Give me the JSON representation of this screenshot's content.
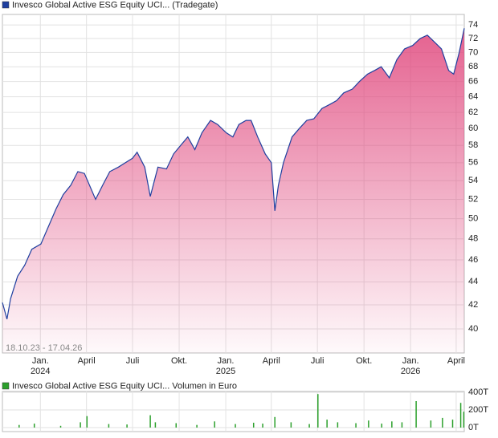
{
  "chart_data": [
    {
      "type": "line",
      "title": "Invesco Global Active ESG Equity UCI... (Tradegate)",
      "subtitle": "18.10.23 - 17.04.26",
      "log": true,
      "grid": true,
      "fill_color": "#e0467c",
      "xlim": [
        "2023-10-18",
        "2026-04-17"
      ],
      "ylim": [
        38.1,
        75.6
      ],
      "yticks": [
        40,
        42,
        44,
        46,
        48,
        50,
        52,
        54,
        56,
        58,
        60,
        62,
        64,
        66,
        68,
        70,
        72,
        74
      ],
      "xticks": [
        {
          "value": "2024-01-01",
          "label": "Jan."
        },
        {
          "value": "2024-04-01",
          "label": "April"
        },
        {
          "value": "2024-07-01",
          "label": "Juli"
        },
        {
          "value": "2024-10-01",
          "label": "Okt."
        },
        {
          "value": "2025-01-01",
          "label": "Jan."
        },
        {
          "value": "2025-04-01",
          "label": "April"
        },
        {
          "value": "2025-07-01",
          "label": "Juli"
        },
        {
          "value": "2025-10-01",
          "label": "Okt."
        },
        {
          "value": "2026-01-01",
          "label": "Jan."
        },
        {
          "value": "2026-04-01",
          "label": "April"
        }
      ],
      "year_labels": [
        {
          "value": "2024-01-01",
          "label": "2024"
        },
        {
          "value": "2025-01-01",
          "label": "2025"
        },
        {
          "value": "2026-01-01",
          "label": "2026"
        }
      ],
      "x": [
        "2023-10-18",
        "2023-10-27",
        "2023-11-03",
        "2023-11-17",
        "2023-12-01",
        "2023-12-15",
        "2024-01-02",
        "2024-01-15",
        "2024-02-01",
        "2024-02-15",
        "2024-03-01",
        "2024-03-15",
        "2024-03-28",
        "2024-04-19",
        "2024-05-03",
        "2024-05-17",
        "2024-06-03",
        "2024-06-17",
        "2024-07-01",
        "2024-07-10",
        "2024-07-25",
        "2024-08-05",
        "2024-08-20",
        "2024-09-06",
        "2024-09-20",
        "2024-10-04",
        "2024-10-18",
        "2024-11-01",
        "2024-11-15",
        "2024-12-02",
        "2024-12-16",
        "2025-01-02",
        "2025-01-15",
        "2025-01-27",
        "2025-02-10",
        "2025-02-20",
        "2025-03-05",
        "2025-03-20",
        "2025-04-01",
        "2025-04-08",
        "2025-04-15",
        "2025-04-25",
        "2025-05-12",
        "2025-05-26",
        "2025-06-10",
        "2025-06-24",
        "2025-07-10",
        "2025-07-25",
        "2025-08-08",
        "2025-08-22",
        "2025-09-08",
        "2025-09-22",
        "2025-10-08",
        "2025-10-22",
        "2025-11-04",
        "2025-11-20",
        "2025-12-05",
        "2025-12-20",
        "2026-01-05",
        "2026-01-20",
        "2026-02-03",
        "2026-02-17",
        "2026-03-03",
        "2026-03-17",
        "2026-03-27",
        "2026-04-07",
        "2026-04-17"
      ],
      "series": [
        {
          "name": "Invesco Global Active ESG Equity UCI... (Tradegate)",
          "color": "#1f3f9f",
          "values": [
            42.2,
            40.8,
            42.5,
            44.5,
            45.5,
            47,
            47.5,
            49,
            51,
            52.5,
            53.5,
            55,
            54.8,
            52,
            53.5,
            55,
            55.5,
            56,
            56.5,
            57.2,
            55.5,
            52.3,
            55.5,
            55.3,
            57,
            58,
            59,
            57.5,
            59.5,
            61,
            60.5,
            59.5,
            59,
            60.5,
            61,
            61,
            59,
            57,
            56,
            50.8,
            53.5,
            56,
            59,
            60,
            61,
            61.2,
            62.5,
            63,
            63.5,
            64.5,
            65,
            66,
            67,
            67.5,
            68,
            66.5,
            69,
            70.5,
            71,
            72,
            72.5,
            71.5,
            70.5,
            67.5,
            67,
            70,
            73.5
          ]
        }
      ]
    },
    {
      "type": "bar",
      "title": "Invesco Global Active ESG Equity UCI... Volumen in Euro",
      "ylim": [
        0,
        400000
      ],
      "yticks": [
        {
          "value": 0,
          "label": "0T"
        },
        {
          "value": 200000,
          "label": "200T"
        },
        {
          "value": 400000,
          "label": "400T"
        }
      ],
      "x": [
        "2023-11-20",
        "2023-12-20",
        "2024-02-10",
        "2024-03-20",
        "2024-04-02",
        "2024-05-15",
        "2024-06-20",
        "2024-08-05",
        "2024-08-15",
        "2024-09-25",
        "2024-11-05",
        "2024-12-10",
        "2025-01-20",
        "2025-02-25",
        "2025-03-15",
        "2025-04-08",
        "2025-05-10",
        "2025-06-15",
        "2025-07-02",
        "2025-07-20",
        "2025-08-10",
        "2025-09-15",
        "2025-10-10",
        "2025-11-05",
        "2025-11-25",
        "2025-12-15",
        "2026-01-12",
        "2026-02-10",
        "2026-03-05",
        "2026-03-25",
        "2026-04-10",
        "2026-04-16"
      ],
      "series": [
        {
          "name": "Invesco Global Active ESG Equity UCI... Volumen in Euro",
          "color": "#2ca02c",
          "values": [
            30000,
            45000,
            20000,
            60000,
            130000,
            40000,
            35000,
            140000,
            60000,
            50000,
            30000,
            70000,
            40000,
            55000,
            45000,
            120000,
            60000,
            40000,
            380000,
            90000,
            60000,
            50000,
            80000,
            45000,
            70000,
            60000,
            300000,
            80000,
            110000,
            90000,
            280000,
            180000
          ]
        }
      ]
    }
  ]
}
